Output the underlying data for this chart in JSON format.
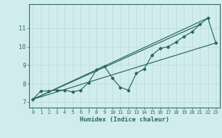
{
  "xlabel": "Humidex (Indice chaleur)",
  "background_color": "#d0ecee",
  "line_color": "#2a6860",
  "grid_color": "#b8d8da",
  "xlim": [
    -0.5,
    23.5
  ],
  "ylim": [
    6.7,
    12.3
  ],
  "xticks": [
    0,
    1,
    2,
    3,
    4,
    5,
    6,
    7,
    8,
    9,
    10,
    11,
    12,
    13,
    14,
    15,
    16,
    17,
    18,
    19,
    20,
    21,
    22,
    23
  ],
  "yticks": [
    7,
    8,
    9,
    10,
    11
  ],
  "data_x": [
    0,
    1,
    2,
    3,
    4,
    5,
    6,
    7,
    8,
    9,
    10,
    11,
    12,
    13,
    14,
    15,
    16,
    17,
    18,
    19,
    20,
    21,
    22,
    23
  ],
  "data_y": [
    7.15,
    7.6,
    7.6,
    7.65,
    7.65,
    7.55,
    7.65,
    8.05,
    8.75,
    8.95,
    8.3,
    7.8,
    7.65,
    8.55,
    8.8,
    9.55,
    9.9,
    10.0,
    10.25,
    10.55,
    10.8,
    11.2,
    11.55,
    10.2
  ],
  "line1_x": [
    0,
    23
  ],
  "line1_y": [
    7.15,
    10.2
  ],
  "line2_x": [
    0,
    21
  ],
  "line2_y": [
    7.15,
    11.2
  ],
  "line3_x": [
    0,
    22
  ],
  "line3_y": [
    7.15,
    11.55
  ]
}
